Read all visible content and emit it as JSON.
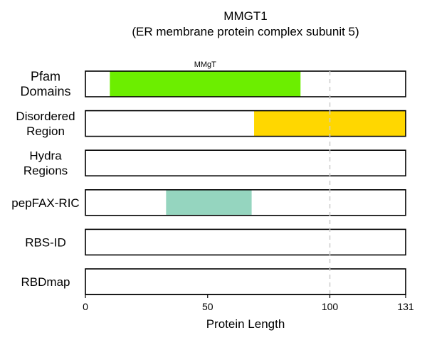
{
  "chart_data": {
    "type": "bar",
    "title": "MMGT1",
    "subtitle": "(ER membrane protein complex subunit 5)",
    "xlabel": "Protein Length",
    "xlim": [
      0,
      131
    ],
    "xticks": [
      0,
      50,
      100,
      131
    ],
    "reference_line_x": 100,
    "grid": false,
    "tracks": [
      {
        "label_lines": [
          "Pfam",
          "Domains"
        ],
        "segments": [
          {
            "start": 10,
            "end": 88,
            "color": "#6cee00",
            "label": "MMgT"
          }
        ]
      },
      {
        "label_lines": [
          "Disordered",
          "Region"
        ],
        "segments": [
          {
            "start": 69,
            "end": 131,
            "color": "#ffd700"
          }
        ]
      },
      {
        "label_lines": [
          "Hydra",
          "Regions"
        ],
        "segments": []
      },
      {
        "label_lines": [
          "pepFAX-RIC"
        ],
        "segments": [
          {
            "start": 33,
            "end": 68,
            "color": "#95d5bf"
          }
        ]
      },
      {
        "label_lines": [
          "RBS-ID"
        ],
        "segments": []
      },
      {
        "label_lines": [
          "RBDmap"
        ],
        "segments": []
      }
    ]
  }
}
